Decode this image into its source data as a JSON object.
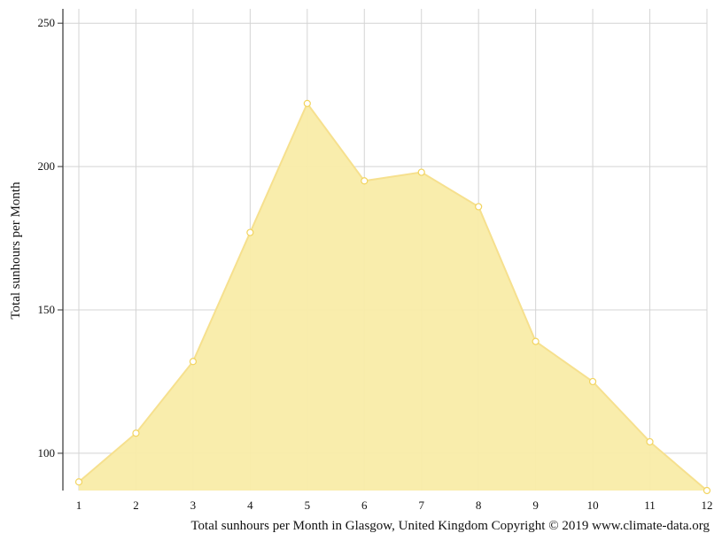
{
  "chart_data": {
    "type": "area",
    "x": [
      1,
      2,
      3,
      4,
      5,
      6,
      7,
      8,
      9,
      10,
      11,
      12
    ],
    "values": [
      90,
      107,
      132,
      177,
      222,
      195,
      198,
      186,
      139,
      125,
      104,
      87
    ],
    "ylabel": "Total sunhours per Month",
    "caption": "Total sunhours per Month in Glasgow, United Kingdom Copyright © 2019 www.climate-data.org",
    "yticks": [
      100,
      150,
      200,
      250
    ],
    "ylim": [
      87,
      255
    ],
    "xlim": [
      1,
      12
    ],
    "grid": true,
    "colors": {
      "fill": "#f9eca8",
      "line": "#f6e08e",
      "marker_fill": "#ffffff",
      "marker_stroke": "#f2d45f",
      "grid": "#d4d4d4",
      "axis": "#333333"
    }
  }
}
